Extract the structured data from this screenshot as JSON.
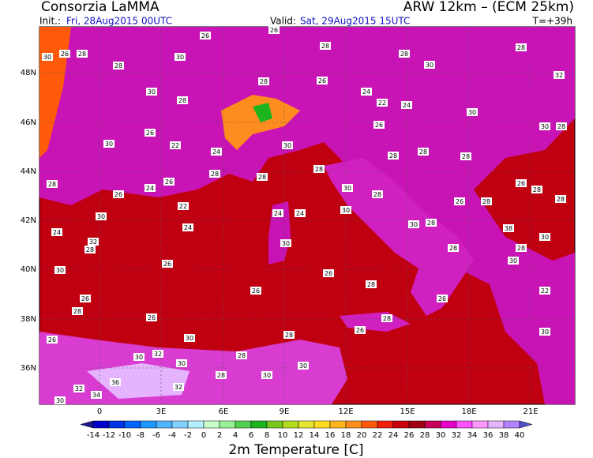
{
  "header": {
    "producer": "Consorzia LaMMA",
    "model": "ARW 12km – (ECM 25km)",
    "init_label": "Init.:",
    "init_value": "Fri, 28Aug2015 00UTC",
    "valid_label": "Valid:",
    "valid_value": "Sat, 29Aug2015 15UTC",
    "lead": "T=+39h"
  },
  "axes": {
    "lat_labels": [
      "48N",
      "46N",
      "44N",
      "42N",
      "40N",
      "38N",
      "36N"
    ],
    "lon_labels": [
      "0",
      "3E",
      "6E",
      "9E",
      "12E",
      "15E",
      "18E",
      "21E"
    ]
  },
  "station_labels": [
    26,
    26,
    28,
    28,
    30,
    28,
    32,
    28,
    30,
    30,
    28,
    26,
    28,
    30,
    28,
    26,
    24,
    22,
    24,
    30,
    30,
    28,
    30,
    26,
    22,
    24,
    30,
    26,
    28,
    28,
    28,
    26,
    28,
    28,
    28,
    26,
    24,
    26,
    22,
    28,
    28,
    28,
    30,
    28,
    26,
    28,
    30,
    24,
    24,
    24,
    24,
    30,
    32,
    28,
    26,
    30,
    30,
    28,
    28,
    38,
    30,
    28,
    30,
    30,
    26,
    28,
    26,
    26,
    28,
    26,
    22,
    26,
    26,
    30,
    28,
    26,
    28,
    30,
    30,
    32,
    30,
    28,
    28,
    30,
    30,
    32,
    34,
    36,
    32,
    30
  ],
  "colorbar": {
    "title": "2m Temperature [C]",
    "ticks": [
      -14,
      -12,
      -10,
      -8,
      -6,
      -4,
      -2,
      0,
      2,
      4,
      6,
      8,
      10,
      12,
      14,
      16,
      18,
      20,
      22,
      24,
      26,
      28,
      30,
      32,
      34,
      36,
      38,
      40
    ],
    "colors": [
      "#1a1a8c",
      "#0000c8",
      "#0032e6",
      "#0064ff",
      "#1e96ff",
      "#50b4ff",
      "#82d2ff",
      "#b4f0ff",
      "#c8ffc8",
      "#96f096",
      "#50d250",
      "#1eb41e",
      "#78c81e",
      "#b4dc1e",
      "#e6e632",
      "#ffdc1e",
      "#ffb41e",
      "#ff8c1e",
      "#ff5a0a",
      "#f01e0a",
      "#c8000a",
      "#a00014",
      "#c8005a",
      "#e600c8",
      "#ff50ff",
      "#ff96ff",
      "#e6b4ff",
      "#b482ff",
      "#5050c8"
    ]
  }
}
